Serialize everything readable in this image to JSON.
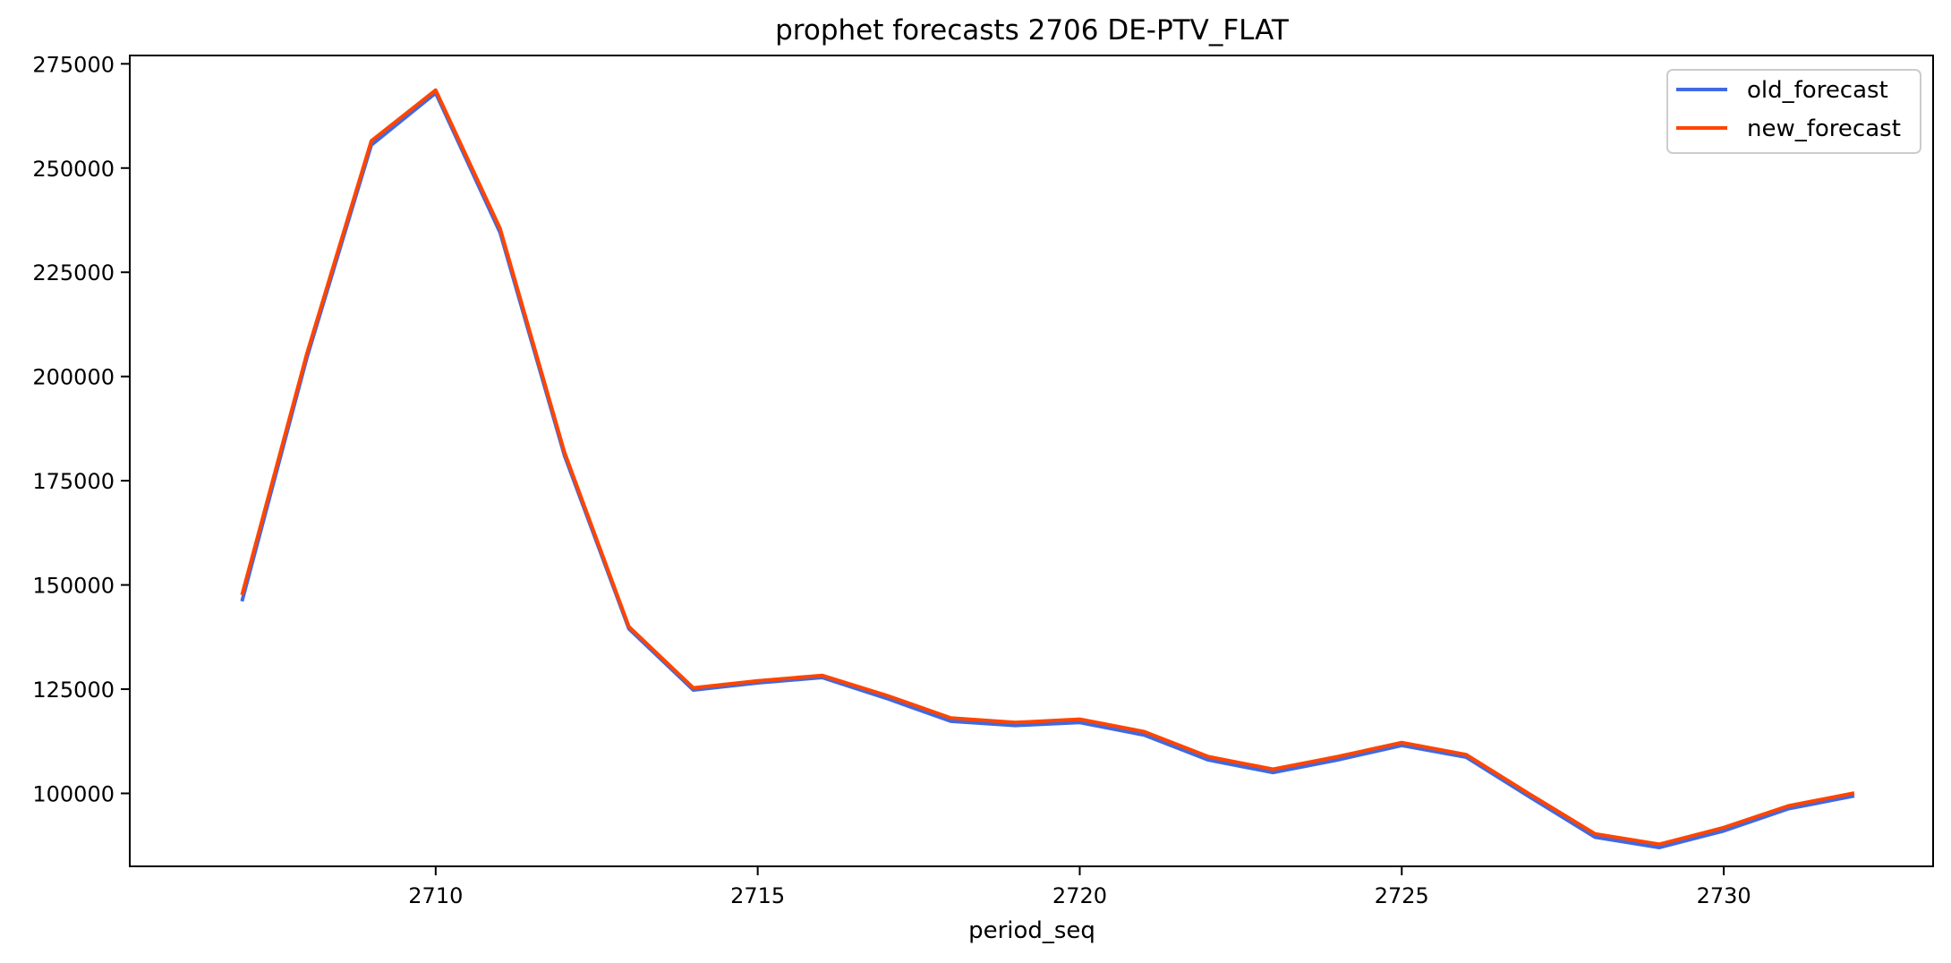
{
  "chart_data": {
    "type": "line",
    "title": "prophet forecasts 2706 DE-PTV_FLAT",
    "xlabel": "period_seq",
    "ylabel": "",
    "x": [
      2707,
      2708,
      2709,
      2710,
      2711,
      2712,
      2713,
      2714,
      2715,
      2716,
      2717,
      2718,
      2719,
      2720,
      2721,
      2722,
      2723,
      2724,
      2725,
      2726,
      2727,
      2728,
      2729,
      2730,
      2731,
      2732
    ],
    "xlim": [
      2705.25,
      2733.25
    ],
    "ylim": [
      82500,
      277000
    ],
    "xticks": [
      2710,
      2715,
      2720,
      2725,
      2730
    ],
    "yticks": [
      100000,
      125000,
      150000,
      175000,
      200000,
      225000,
      250000,
      275000
    ],
    "grid": false,
    "legend_position": "top-right",
    "series": [
      {
        "name": "old_forecast",
        "color": "#4169e1",
        "values": [
          146500,
          204500,
          255500,
          268000,
          234500,
          181000,
          139500,
          124800,
          126500,
          127800,
          122800,
          117300,
          116300,
          117000,
          114000,
          108000,
          105000,
          108000,
          111500,
          108700,
          99000,
          89500,
          87000,
          91000,
          96300,
          99300
        ]
      },
      {
        "name": "new_forecast",
        "color": "#ff4500",
        "values": [
          148000,
          205500,
          256500,
          268700,
          235500,
          181800,
          140000,
          125300,
          127000,
          128300,
          123500,
          118100,
          117000,
          117800,
          114800,
          108800,
          105800,
          108800,
          112200,
          109300,
          99700,
          90300,
          87800,
          91800,
          97000,
          100000
        ]
      }
    ]
  }
}
